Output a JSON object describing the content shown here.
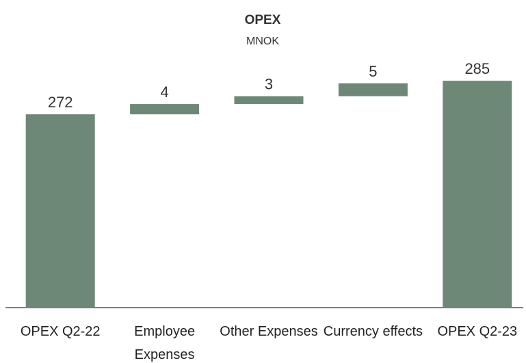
{
  "chart_data": {
    "type": "waterfall",
    "title": "OPEX",
    "subtitle": "MNOK",
    "categories": [
      "OPEX Q2-22",
      "Employee Expenses",
      "Other Expenses",
      "Currency effects",
      "OPEX Q2-23"
    ],
    "values": [
      272,
      4,
      3,
      5,
      285
    ],
    "measure": [
      "total",
      "relative",
      "relative",
      "relative",
      "total"
    ],
    "color": "#6e8877",
    "ylim": [
      197,
      293
    ]
  }
}
